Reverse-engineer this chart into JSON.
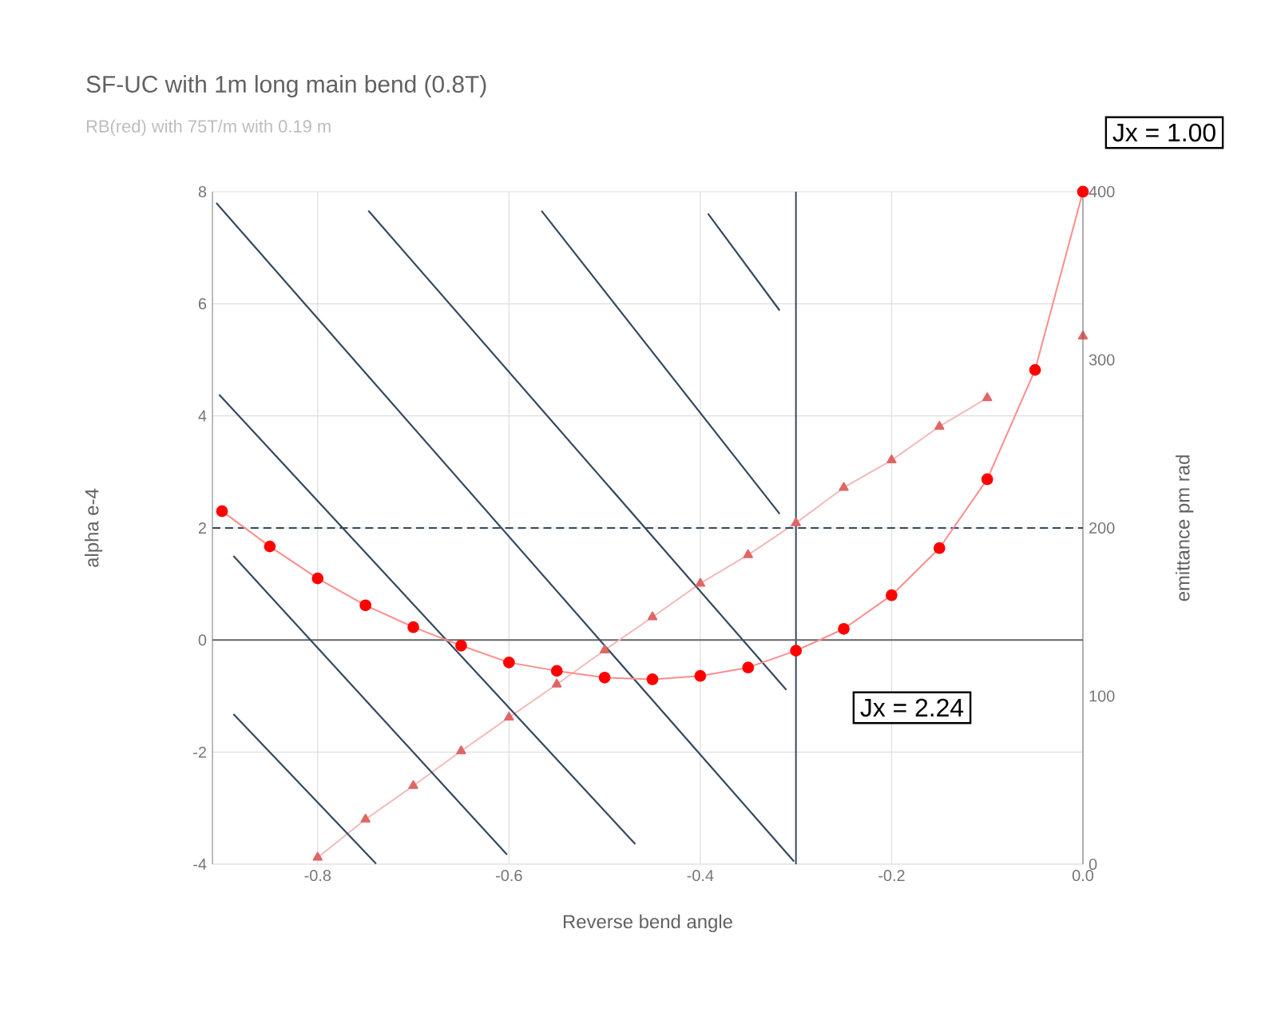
{
  "chart_data": {
    "type": "line",
    "title": "SF-UC with 1m long main bend (0.8T)",
    "subtitle": "RB(red) with 75T/m with 0.19 m",
    "xlabel": "Reverse bend angle",
    "ylabel": "alpha e-4",
    "y2label": "emittance pm rad",
    "annotations": [
      "Jx = 2.24",
      "Jx = 1.00"
    ],
    "x": [
      -0.9,
      -0.85,
      -0.8,
      -0.75,
      -0.7,
      -0.65,
      -0.6,
      -0.55,
      -0.5,
      -0.45,
      -0.4,
      -0.35,
      -0.3,
      -0.25,
      -0.2,
      -0.15,
      -0.1,
      -0.05,
      0
    ],
    "series": [
      {
        "color": "#e06666",
        "marker": "triangle",
        "values": [
          null,
          null,
          -3.88,
          -3.2,
          -2.6,
          -1.98,
          -1.38,
          -0.79,
          -0.18,
          0.41,
          1.01,
          1.52,
          2.09,
          2.72,
          3.21,
          3.81,
          4.32,
          null,
          5.42
        ]
      },
      {
        "color": "#ff0000",
        "marker": "circle",
        "axis": "y2",
        "values": [
          210,
          189,
          170,
          154,
          141,
          130,
          120,
          115,
          111,
          110,
          112,
          117,
          127,
          140,
          160,
          188,
          229,
          294,
          400
        ]
      },
      {
        "color": "#34495e",
        "marker": "none",
        "x": [
          -0.906,
          -0.302
        ],
        "values": [
          7.8,
          -3.95
        ]
      },
      {
        "color": "#34495e",
        "marker": "none",
        "x": [
          -0.747,
          -0.31
        ],
        "values": [
          7.66,
          -0.89
        ]
      },
      {
        "color": "#34495e",
        "marker": "none",
        "x": [
          -0.566,
          -0.317
        ],
        "values": [
          7.66,
          2.25
        ]
      },
      {
        "color": "#34495e",
        "marker": "none",
        "x": [
          -0.392,
          -0.317
        ],
        "values": [
          7.61,
          5.88
        ]
      },
      {
        "color": "#34495e",
        "marker": "none",
        "x": [
          -0.903,
          -0.468
        ],
        "values": [
          4.38,
          -3.64
        ]
      },
      {
        "color": "#34495e",
        "marker": "none",
        "x": [
          -0.888,
          -0.602
        ],
        "values": [
          1.5,
          -3.83
        ]
      },
      {
        "color": "#34495e",
        "marker": "none",
        "x": [
          -0.888,
          -0.739
        ],
        "values": [
          -1.32,
          -3.99
        ]
      }
    ],
    "ref_lines": [
      {
        "axis": "x",
        "value": -0.3,
        "color": "#34495e"
      },
      {
        "axis": "y2",
        "value": 200,
        "color": "#34495e",
        "line_style": "dashed"
      },
      {
        "axis": "y",
        "value": 0,
        "color": "#666666"
      }
    ],
    "xlim": [
      -0.91,
      0
    ],
    "xticks": [
      -0.8,
      -0.6,
      -0.4,
      -0.2,
      {
        "value": 0,
        "label": "0.0"
      }
    ],
    "ylim": [
      -4,
      8
    ],
    "yticks": [
      -4,
      -2,
      0,
      2,
      4,
      6,
      8
    ],
    "y2lim": [
      0,
      400
    ],
    "y2ticks": [
      0,
      100,
      200,
      300,
      400
    ],
    "grid": true
  }
}
